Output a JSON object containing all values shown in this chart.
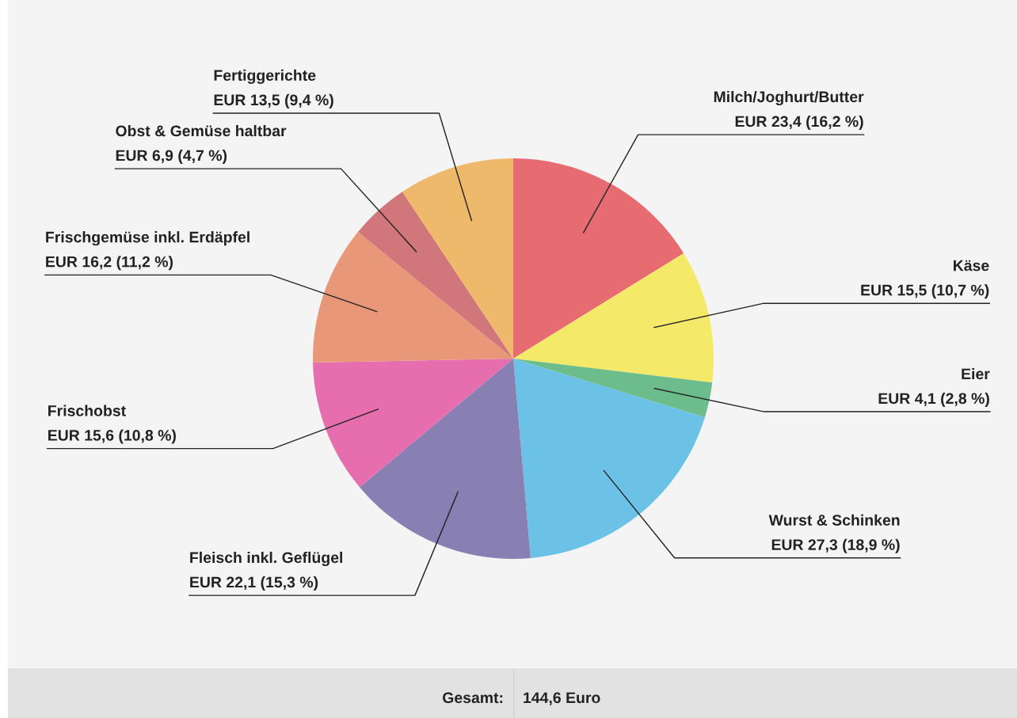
{
  "chart_data": {
    "type": "pie",
    "categories": [
      "Milch/Joghurt/Butter",
      "Käse",
      "Eier",
      "Wurst & Schinken",
      "Fleisch inkl. Geflügel",
      "Frischobst",
      "Frischgemüse inkl. Erdäpfel",
      "Obst & Gemüse haltbar",
      "Fertiggerichte"
    ],
    "values": [
      23.4,
      15.5,
      4.1,
      27.3,
      22.1,
      15.6,
      16.2,
      6.9,
      13.5
    ],
    "value_labels": [
      "EUR 23,4 (16,2 %)",
      "EUR 15,5 (10,7 %)",
      "EUR 4,1 (2,8 %)",
      "EUR 27,3 (18,9 %)",
      "EUR 22,1 (15,3 %)",
      "EUR 15,6 (10,8 %)",
      "EUR 16,2 (11,2 %)",
      "EUR 6,9 (4,7 %)",
      "EUR 13,5 (9,4 %)"
    ],
    "colors": [
      "#e66c72",
      "#f5e96a",
      "#6cbd8b",
      "#6cc1e6",
      "#8880b3",
      "#e66eae",
      "#e89878",
      "#d1767b",
      "#efb96c"
    ],
    "annotations": [
      "Gesamt:",
      "144,6 Euro"
    ]
  }
}
